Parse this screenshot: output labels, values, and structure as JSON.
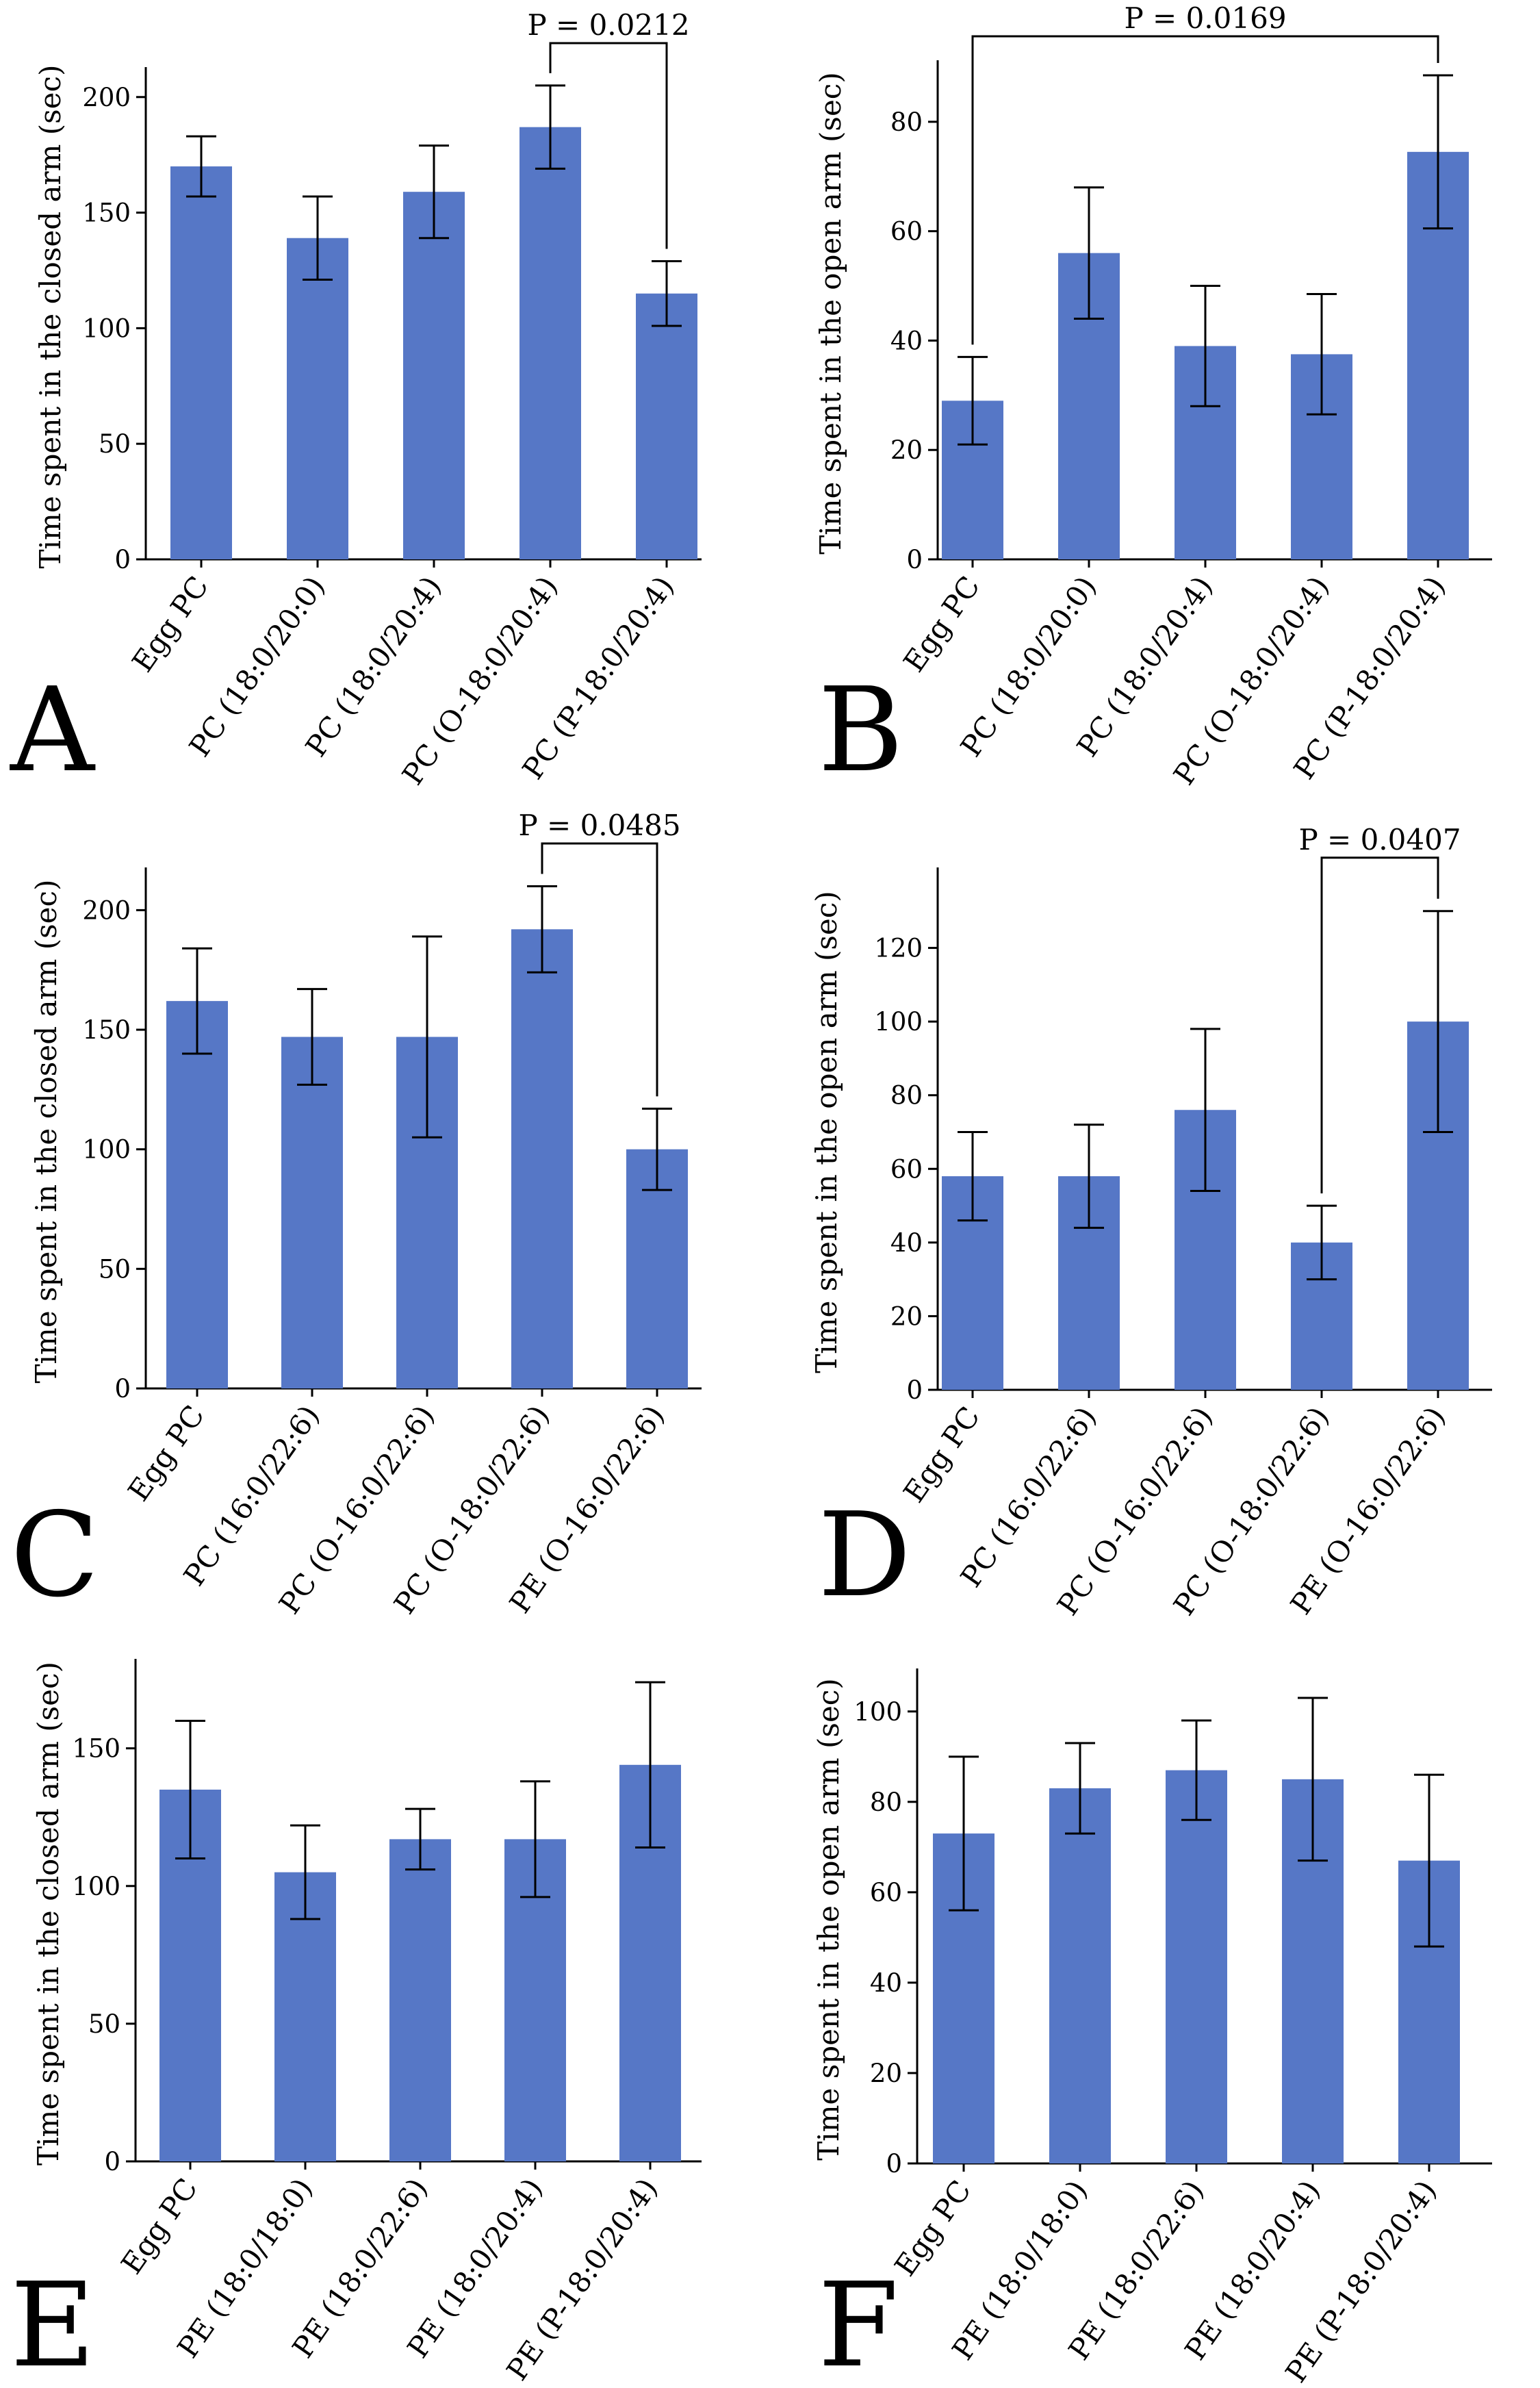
{
  "colors": {
    "bar": "#5677C6",
    "axis": "#000000",
    "background": "#ffffff"
  },
  "chart_data": [
    {
      "panel": "A",
      "type": "bar",
      "ylabel": "Time spent in the closed arm (sec)",
      "ylim": [
        0,
        210
      ],
      "yticks": [
        0,
        50,
        100,
        150,
        200
      ],
      "categories": [
        "Egg PC",
        "PC (18:0/20:0)",
        "PC (18:0/20:4)",
        "PC (O-18:0/20:4)",
        "PC (P-18:0/20:4)"
      ],
      "values": [
        170,
        139,
        159,
        187,
        115
      ],
      "error": [
        13,
        18,
        20,
        18,
        14
      ],
      "significance": {
        "from": 3,
        "to": 4,
        "label": "P = 0.0212"
      }
    },
    {
      "panel": "B",
      "type": "bar",
      "ylabel": "Time spent in the open arm (sec)",
      "ylim": [
        0,
        90
      ],
      "yticks": [
        0,
        20,
        40,
        60,
        80
      ],
      "categories": [
        "Egg PC",
        "PC (18:0/20:0)",
        "PC (18:0/20:4)",
        "PC (O-18:0/20:4)",
        "PC (P-18:0/20:4)"
      ],
      "values": [
        29,
        56,
        39,
        37.5,
        74.5
      ],
      "error": [
        8,
        12,
        11,
        11,
        14
      ],
      "significance": {
        "from": 0,
        "to": 4,
        "label": "P = 0.0169"
      }
    },
    {
      "panel": "C",
      "type": "bar",
      "ylabel": "Time spent in the closed arm (sec)",
      "ylim": [
        0,
        215
      ],
      "yticks": [
        0,
        50,
        100,
        150,
        200
      ],
      "categories": [
        "Egg PC",
        "PC (16:0/22:6)",
        "PC (O-16:0/22:6)",
        "PC (O-18:0/22:6)",
        "PE (O-16:0/22:6)"
      ],
      "values": [
        162,
        147,
        147,
        192,
        100
      ],
      "error": [
        22,
        20,
        42,
        18,
        17
      ],
      "significance": {
        "from": 3,
        "to": 4,
        "label": "P = 0.0485"
      }
    },
    {
      "panel": "D",
      "type": "bar",
      "ylabel": "Time spent in the open arm (sec)",
      "ylim": [
        0,
        140
      ],
      "yticks": [
        0,
        20,
        40,
        60,
        80,
        100,
        120
      ],
      "categories": [
        "Egg PC",
        "PC (16:0/22:6)",
        "PC (O-16:0/22:6)",
        "PC (O-18:0/22:6)",
        "PE (O-16:0/22:6)"
      ],
      "values": [
        58,
        58,
        76,
        40,
        100
      ],
      "error": [
        12,
        14,
        22,
        10,
        30
      ],
      "significance": {
        "from": 3,
        "to": 4,
        "label": "P = 0.0407"
      }
    },
    {
      "panel": "E",
      "type": "bar",
      "ylabel": "Time spent in the closed arm (sec)",
      "ylim": [
        0,
        180
      ],
      "yticks": [
        0,
        50,
        100,
        150
      ],
      "categories": [
        "Egg PC",
        "PE (18:0/18:0)",
        "PE (18:0/22:6)",
        "PE (18:0/20:4)",
        "PE (P-18:0/20:4)"
      ],
      "values": [
        135,
        105,
        117,
        117,
        144
      ],
      "error": [
        25,
        17,
        11,
        21,
        30
      ],
      "significance": null
    },
    {
      "panel": "F",
      "type": "bar",
      "ylabel": "Time spent in the open arm (sec)",
      "ylim": [
        0,
        108
      ],
      "yticks": [
        0,
        20,
        40,
        60,
        80,
        100
      ],
      "categories": [
        "Egg PC",
        "PE (18:0/18:0)",
        "PE (18:0/22:6)",
        "PE (18:0/20:4)",
        "PE (P-18:0/20:4)"
      ],
      "values": [
        73,
        83,
        87,
        85,
        67
      ],
      "error": [
        17,
        10,
        11,
        18,
        19
      ],
      "significance": null
    }
  ]
}
